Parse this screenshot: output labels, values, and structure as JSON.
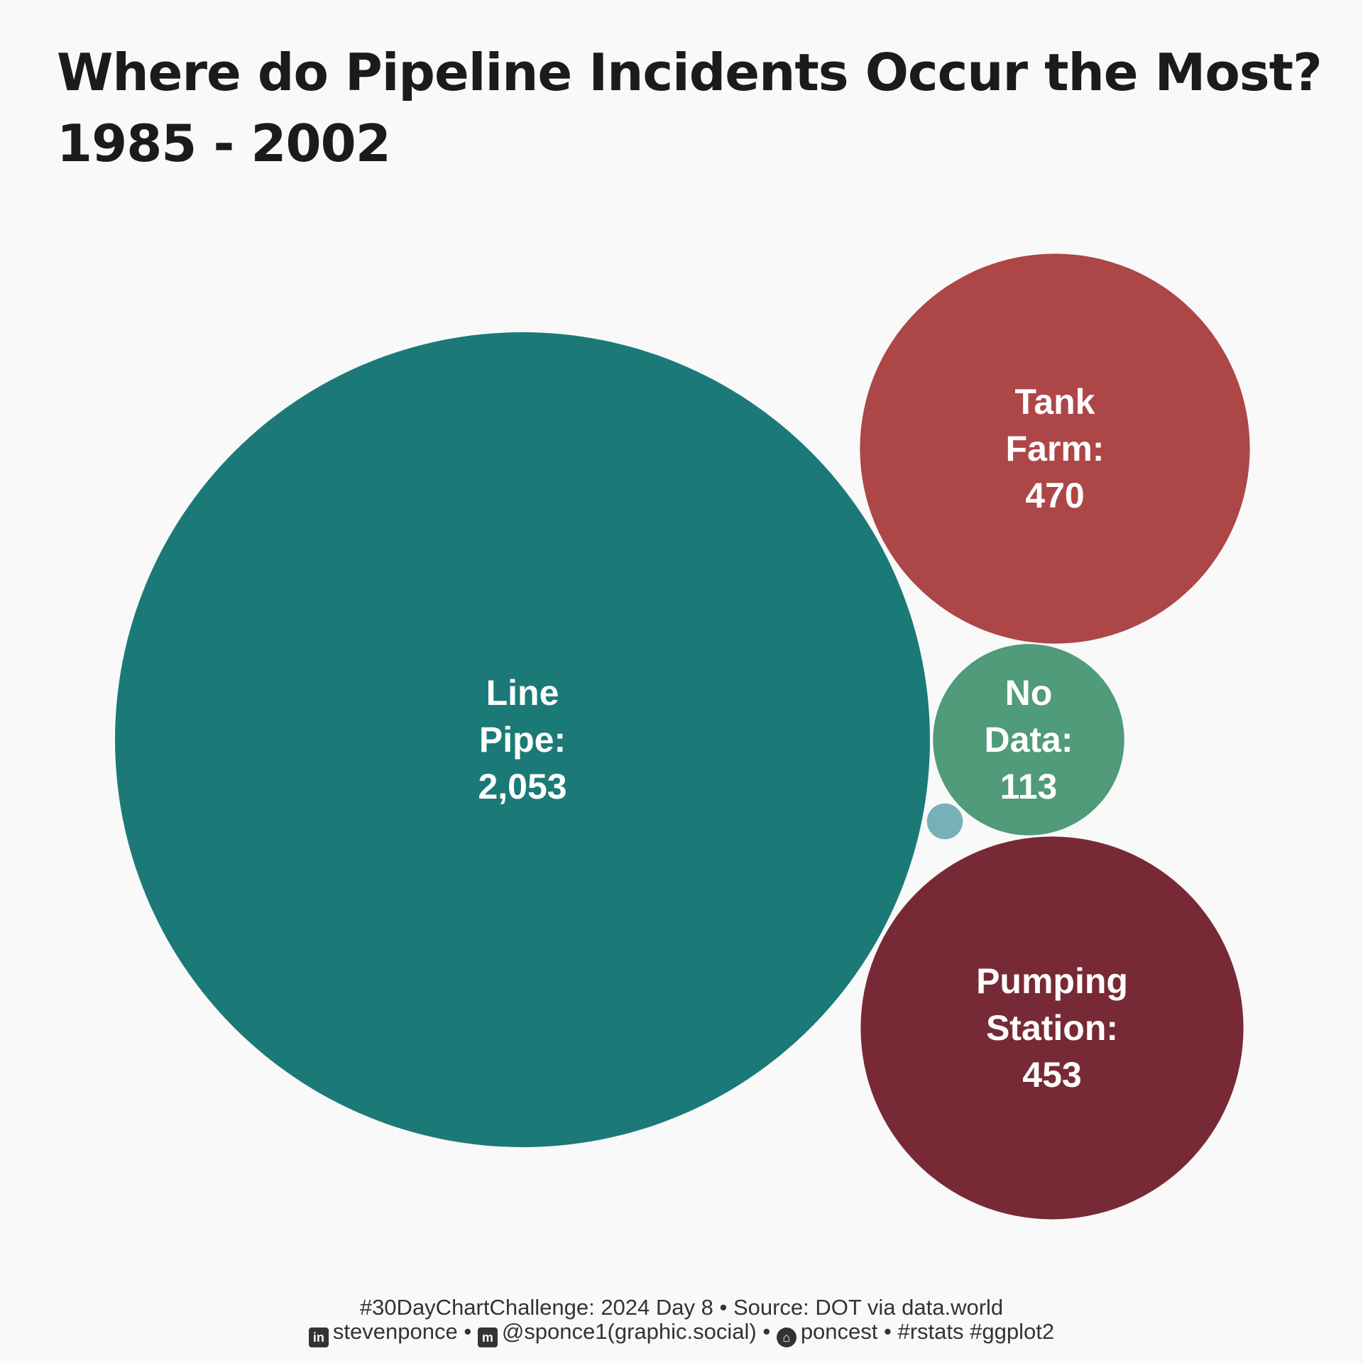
{
  "title": {
    "line1": "Where do Pipeline Incidents Occur the Most?",
    "line2": "1985 - 2002"
  },
  "chart_data": {
    "type": "bubble",
    "title": "Where do Pipeline Incidents Occur the Most? 1985 - 2002",
    "series": [
      {
        "name": "Line Pipe",
        "value": 2053,
        "label": [
          "Line",
          "Pipe:",
          "2,053"
        ],
        "color": "#1b7a77"
      },
      {
        "name": "Tank Farm",
        "value": 470,
        "label": [
          "Tank",
          "Farm:",
          "470"
        ],
        "color": "#ad4647"
      },
      {
        "name": "No Data",
        "value": 113,
        "label": [
          "No",
          "Data:",
          "113"
        ],
        "color": "#4f9b7a"
      },
      {
        "name": "Pumping Station",
        "value": 453,
        "label": [
          "Pumping",
          "Station:",
          "453"
        ],
        "color": "#772a35"
      },
      {
        "name": "",
        "value": 4,
        "label": [],
        "color": "#78b0b8"
      }
    ]
  },
  "caption": {
    "line1": "#30DayChartChallenge: 2024 Day 8 • Source: DOT via data.world",
    "linkedin_icon": "linkedin-icon",
    "linkedin": "stevenponce",
    "sep1": "•",
    "mastodon_icon": "mastodon-icon",
    "mastodon": "@sponce1(graphic.social)",
    "sep2": "•",
    "github_icon": "github-icon",
    "github": "poncest",
    "tail": "• #rstats #ggplot2"
  }
}
